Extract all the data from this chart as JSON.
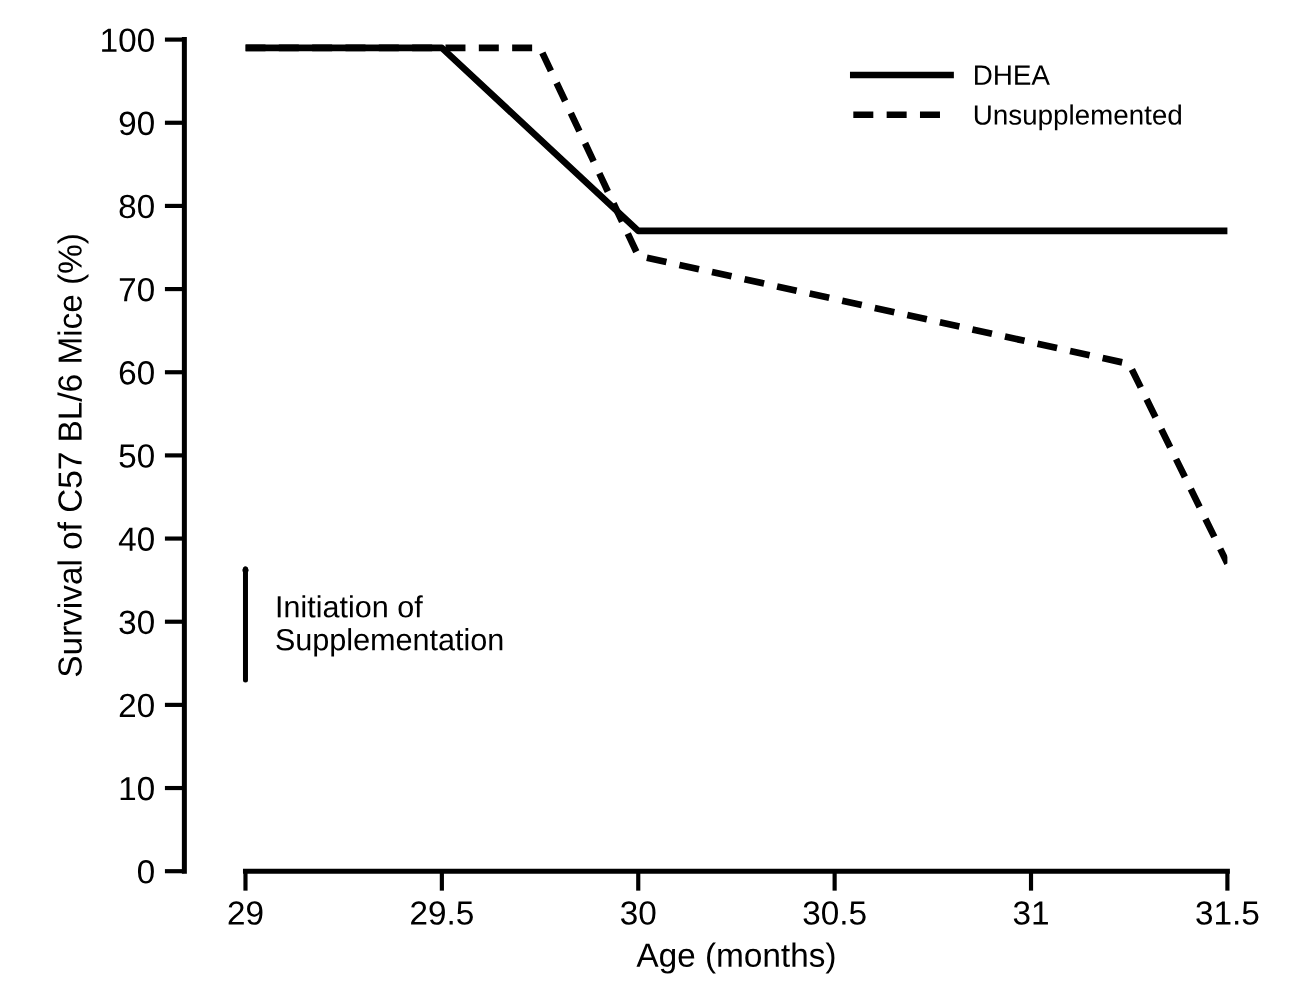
{
  "chart_data": {
    "type": "line",
    "xlabel": "Age (months)",
    "ylabel": "Survival of C57 BL/6 Mice (%)",
    "xlim": [
      29,
      31.5
    ],
    "xticks": [
      29,
      29.5,
      30,
      30.5,
      31,
      31.5
    ],
    "ylim": [
      0,
      100
    ],
    "yticks": [
      0,
      10,
      20,
      30,
      40,
      50,
      60,
      70,
      80,
      90,
      100
    ],
    "series": [
      {
        "name": "DHEA",
        "color": "#000000",
        "line_style": "solid",
        "x": [
          29,
          29.5,
          30,
          31.5
        ],
        "values": [
          99,
          99,
          77,
          77
        ]
      },
      {
        "name": "Unsupplemented",
        "color": "#000000",
        "line_style": "dashed",
        "x": [
          29,
          29.75,
          30,
          31.25,
          31.5
        ],
        "values": [
          99,
          99,
          74,
          61,
          37
        ]
      }
    ],
    "annotations": [
      "Initiation of\nSupplementation"
    ],
    "legend": "top right",
    "grid": false,
    "marker": "none"
  }
}
